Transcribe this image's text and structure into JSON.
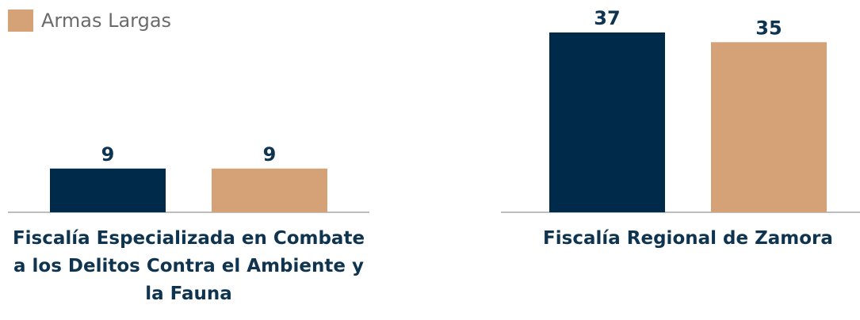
{
  "chart_data": {
    "type": "bar",
    "categories": [
      "Fiscalía Especializada en Combate a los Delitos Contra el Ambiente y la Fauna",
      "Fiscalía Regional de Zamora"
    ],
    "series": [
      {
        "color": "#002a4a",
        "values": [
          9,
          37
        ]
      },
      {
        "name": "Armas Largas",
        "color": "#d4a276",
        "values": [
          9,
          35
        ]
      }
    ],
    "ylim": [
      0,
      40
    ]
  }
}
